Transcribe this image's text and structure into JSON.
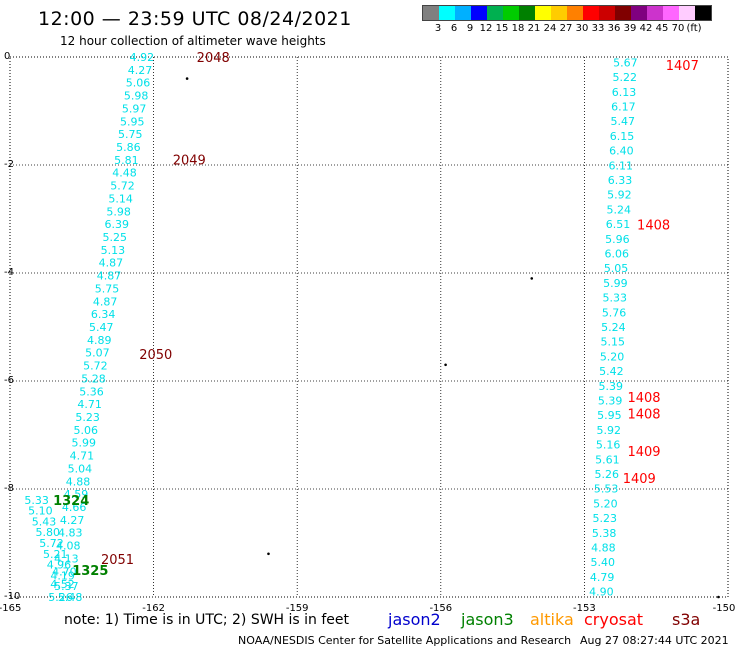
{
  "title": "12:00 — 23:59 UTC 08/24/2021",
  "subtitle": "12 hour collection of altimeter wave heights",
  "legend": {
    "colors": [
      "#808080",
      "#00ffff",
      "#00b0ff",
      "#0000ff",
      "#00b050",
      "#00cc00",
      "#008000",
      "#ffff00",
      "#ffcc00",
      "#ff8000",
      "#ff0000",
      "#cc0000",
      "#800000",
      "#800080",
      "#cc33cc",
      "#ff66ff",
      "#ffccff",
      "#000000"
    ],
    "labels": [
      "3",
      "6",
      "9",
      "12",
      "15",
      "18",
      "21",
      "24",
      "27",
      "30",
      "33",
      "36",
      "39",
      "42",
      "45",
      "70",
      "(ft)"
    ]
  },
  "axes": {
    "y_ticks": [
      "0",
      "-2",
      "-4",
      "-6",
      "-8",
      "-10"
    ],
    "x_ticks": [
      "-165",
      "-162",
      "-159",
      "-156",
      "-153",
      "-150"
    ]
  },
  "chart_data": {
    "type": "map",
    "lon_range": [
      -165,
      -150
    ],
    "lat_range": [
      -10,
      0
    ],
    "track_colors": {
      "cyan": "#00e0e8",
      "red": "#ff0000",
      "darkred": "#800000",
      "green": "#008000"
    },
    "tracks": [
      {
        "id": "west-cyan",
        "color": "cyan",
        "lon0": -162.5,
        "lat0": 0.0,
        "lon1": -164.2,
        "lat1": -10,
        "values": [
          "4.92",
          "4.27",
          "5.06",
          "5.98",
          "5.97",
          "5.95",
          "5.75",
          "5.86",
          "5.81",
          "4.48",
          "5.72",
          "5.14",
          "5.98",
          "6.39",
          "5.25",
          "5.13",
          "4.87",
          "4.87",
          "5.75",
          "4.87",
          "6.34",
          "5.47",
          "4.89",
          "5.07",
          "5.72",
          "5.28",
          "5.36",
          "4.71",
          "5.23",
          "5.06",
          "5.99",
          "4.71",
          "5.04",
          "4.88",
          "4.59",
          "4.66",
          "4.27",
          "4.83",
          "4.08",
          "4.13",
          "4.70",
          "4.52",
          "5.26"
        ]
      },
      {
        "id": "west-cyan-edge",
        "color": "cyan",
        "lon0": -164.7,
        "lat0": -8.2,
        "lon1": -164.0,
        "lat1": -10,
        "values": [
          "5.33",
          "5.10",
          "5.43",
          "5.80",
          "5.72",
          "5.21",
          "4.96",
          "4.19",
          "5.37",
          "5.48"
        ]
      },
      {
        "id": "east-cyan",
        "color": "cyan",
        "lon0": -152.4,
        "lat0": -0.1,
        "lon1": -152.9,
        "lat1": -9.9,
        "values": [
          "5.67",
          "5.22",
          "6.13",
          "6.17",
          "5.47",
          "6.15",
          "6.40",
          "6.11",
          "6.33",
          "5.92",
          "5.24",
          "6.51",
          "5.96",
          "6.06",
          "5.05",
          "5.99",
          "5.33",
          "5.76",
          "5.24",
          "5.15",
          "5.20",
          "5.42",
          "5.39",
          "5.39",
          "5.95",
          "5.92",
          "5.16",
          "5.61",
          "5.26",
          "5.53",
          "5.20",
          "5.23",
          "5.38",
          "4.88",
          "5.40",
          "4.79",
          "4.90"
        ]
      }
    ],
    "pass_labels": [
      {
        "text": "2048",
        "color": "darkred",
        "lon": -161.1,
        "lat": 0.0
      },
      {
        "text": "2049",
        "color": "darkred",
        "lon": -161.6,
        "lat": -1.9
      },
      {
        "text": "2050",
        "color": "darkred",
        "lon": -162.3,
        "lat": -5.5
      },
      {
        "text": "2051",
        "color": "darkred",
        "lon": -163.1,
        "lat": -9.3
      },
      {
        "text": "1324",
        "color": "green",
        "lon": -164.1,
        "lat": -8.2
      },
      {
        "text": "1325",
        "color": "green",
        "lon": -163.7,
        "lat": -9.5
      },
      {
        "text": "1407",
        "color": "red",
        "lon": -151.3,
        "lat": -0.15
      },
      {
        "text": "1408",
        "color": "red",
        "lon": -151.9,
        "lat": -3.1
      },
      {
        "text": "1408",
        "color": "red",
        "lon": -152.1,
        "lat": -6.3
      },
      {
        "text": "1408",
        "color": "red",
        "lon": -152.1,
        "lat": -6.6
      },
      {
        "text": "1409",
        "color": "red",
        "lon": -152.1,
        "lat": -7.3
      },
      {
        "text": "1409",
        "color": "red",
        "lon": -152.2,
        "lat": -7.8
      }
    ]
  },
  "note": "note: 1) Time is in UTC; 2) SWH is in feet",
  "satellites": [
    {
      "name": "jason2",
      "color": "#0000cc"
    },
    {
      "name": "jason3",
      "color": "#008000"
    },
    {
      "name": "altika",
      "color": "#ff9900"
    },
    {
      "name": "cryosat",
      "color": "#ff0000"
    },
    {
      "name": "s3a",
      "color": "#800000"
    }
  ],
  "footer": "NOAA/NESDIS Center for Satellite Applications and Research",
  "footer_time": "Aug 27 08:27:44 UTC 2021"
}
